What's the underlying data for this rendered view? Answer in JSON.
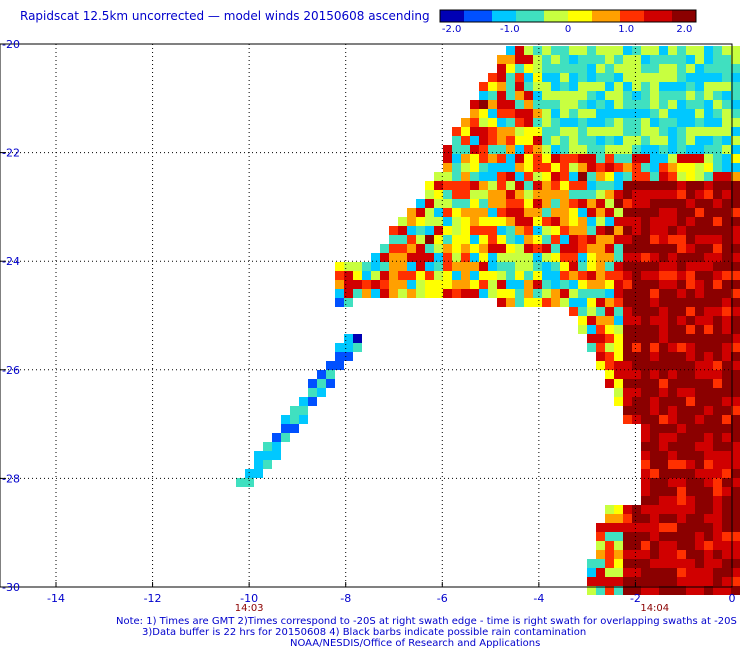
{
  "title": "Rapidscat 12.5km uncorrected — model winds 20150608 ascending",
  "colorbar": {
    "tick_labels": [
      "-2.0",
      "-1.0",
      "0",
      "1.0",
      "2.0"
    ],
    "tick_values": [
      -2.0,
      -1.0,
      0,
      1.0,
      2.0
    ],
    "range": [
      -2.2,
      2.2
    ],
    "colors": [
      "#0000b4",
      "#0050ff",
      "#00c8ff",
      "#40e0c0",
      "#c8ff40",
      "#ffff00",
      "#ffa000",
      "#ff3000",
      "#d00000",
      "#8b0000"
    ]
  },
  "axes": {
    "x_ticks": [
      "-14",
      "-12",
      "-10",
      "-8",
      "-6",
      "-4",
      "-2",
      "0"
    ],
    "x_range": [
      -14.0,
      0.0
    ],
    "y_ticks": [
      "-20",
      "-22",
      "-24",
      "-26",
      "-28",
      "-30"
    ],
    "y_range": [
      -30.0,
      -20.0
    ],
    "grid": true,
    "grid_style": "dotted"
  },
  "time_labels": [
    {
      "text": "14:03",
      "lon": -10.0
    },
    {
      "text": "14:04",
      "lon": -1.6
    }
  ],
  "notes": [
    "Note: 1) Times are GMT 2)Times correspond to -20S at right swath edge - time is right swath for overlapping swaths at -20S",
    "3)Data buffer is 22 hrs for 20150608 4) Black barbs indicate possible rain contamination",
    "NOAA/NESDIS/Office of Research and Applications"
  ],
  "colors": {
    "text": "#0000cc",
    "time_labels": "#8b0000",
    "frame": "#000000"
  }
}
